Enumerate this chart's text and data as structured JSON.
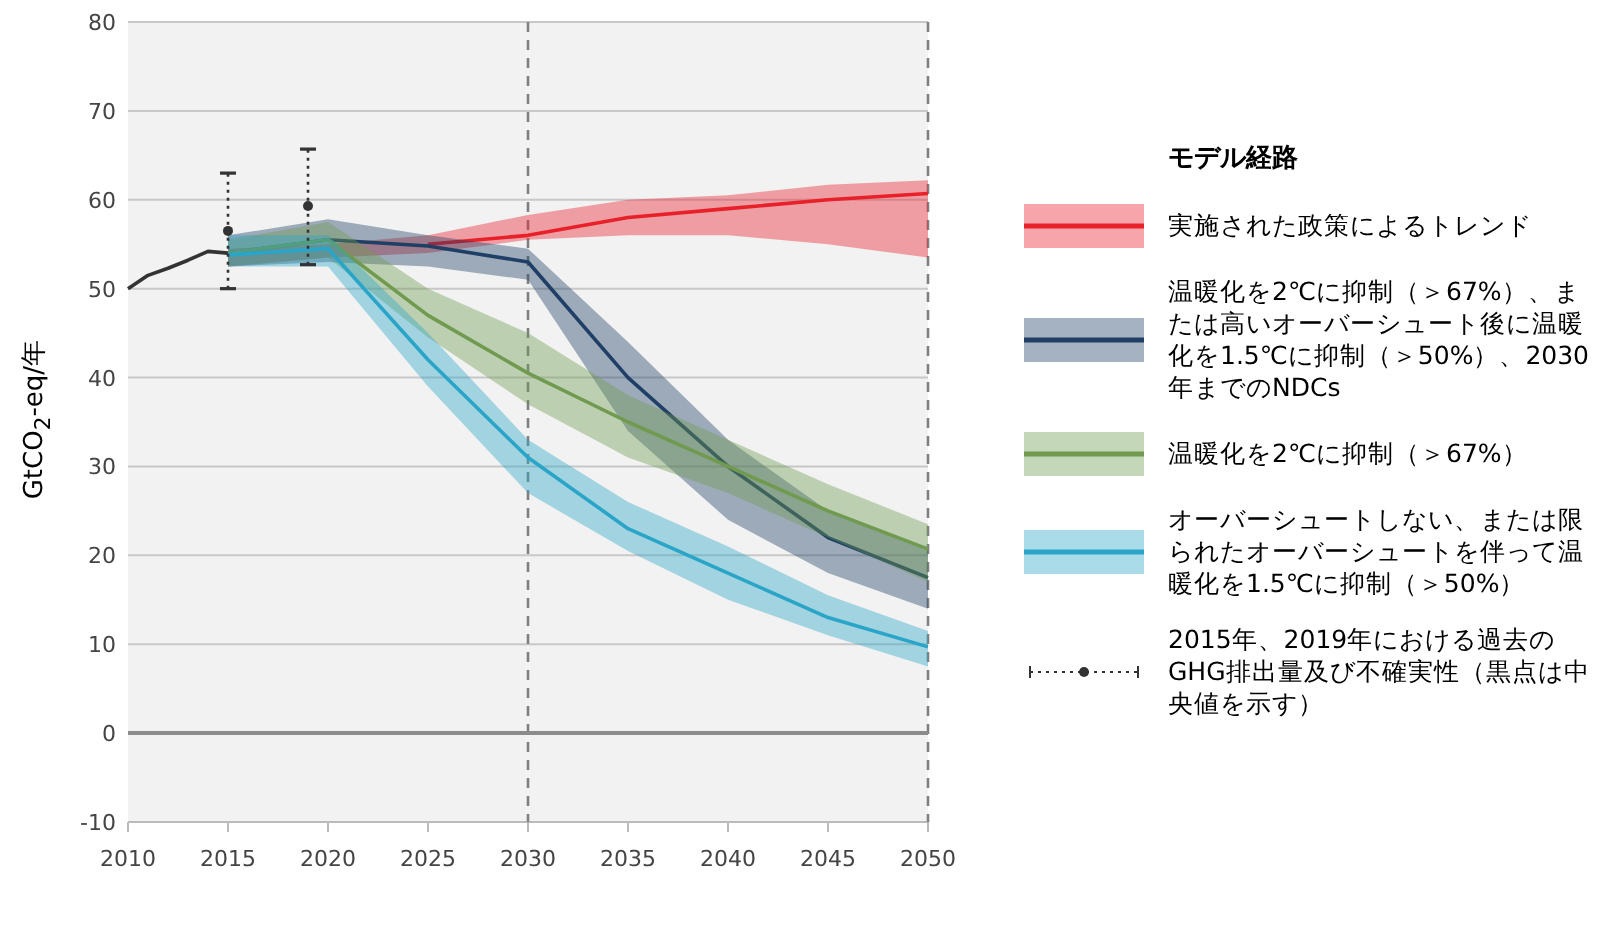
{
  "chart_data": {
    "type": "line",
    "ylabel": "GtCO$_{2}$-eq/年",
    "legend_title": "モデル経路",
    "legend": "right",
    "grid": "y",
    "xlim": [
      2010,
      2050
    ],
    "ylim": [
      -10,
      80
    ],
    "xticks": [
      2010,
      2015,
      2020,
      2025,
      2030,
      2035,
      2040,
      2045,
      2050
    ],
    "yticks": [
      -10,
      0,
      10,
      20,
      30,
      40,
      50,
      60,
      70,
      80
    ],
    "ref_lines": [
      {
        "axis": "x",
        "value": 2030,
        "color": "#808080",
        "line_style": "dashed"
      },
      {
        "axis": "x",
        "value": 2050,
        "color": "#808080",
        "line_style": "dashed"
      },
      {
        "axis": "y",
        "value": 0,
        "color": "#8c8c8c",
        "line_style": "solid"
      }
    ],
    "series": [
      {
        "color": "#333333",
        "x": [
          2010,
          2011,
          2012,
          2013,
          2014,
          2015
        ],
        "values": [
          50,
          51.5,
          52.3,
          53.2,
          54.2,
          54
        ]
      },
      {
        "name": "実施された政策によるトレンド",
        "color": "#e8202a",
        "x": [
          2015,
          2020,
          2025,
          2030,
          2035,
          2040,
          2045,
          2050
        ],
        "values": [
          null,
          null,
          55,
          56,
          58,
          59,
          60,
          60.7
        ],
        "lower": [
          52.5,
          53.5,
          54,
          55.5,
          56,
          56,
          55,
          53.5
        ],
        "upper": [
          54.5,
          55,
          56,
          58.3,
          60,
          60.5,
          61.7,
          62.2
        ]
      },
      {
        "name": "温暖化を2℃に抑制（＞67%）、または高いオーバーシュート後に温暖化を1.5℃に抑制（＞50%）、2030年までのNDCs",
        "color": "#1f3f66",
        "x": [
          2015,
          2020,
          2025,
          2030,
          2035,
          2040,
          2045,
          2050
        ],
        "values": [
          54,
          55.5,
          54.8,
          53,
          40,
          30,
          22,
          17.5
        ],
        "lower": [
          52.5,
          53,
          52.5,
          51,
          34,
          24,
          18,
          14
        ],
        "upper": [
          56,
          57.8,
          56,
          54.5,
          44,
          33,
          25,
          20.5
        ]
      },
      {
        "name": "温暖化を2℃に抑制（＞67%）",
        "color": "#6f9a4f",
        "x": [
          2015,
          2020,
          2025,
          2030,
          2035,
          2040,
          2045,
          2050
        ],
        "values": [
          54,
          55.5,
          47,
          40.5,
          35,
          30,
          25,
          20.7
        ],
        "lower": [
          52.5,
          53.5,
          44.5,
          37,
          31,
          27,
          22,
          17
        ],
        "upper": [
          55.5,
          57.5,
          50,
          45,
          38,
          33,
          28,
          23.5
        ]
      },
      {
        "name": "オーバーシュートしない、または限られたオーバーシュートを伴って温暖化を1.5℃に抑制（＞50%）",
        "color": "#2aa5c8",
        "x": [
          2015,
          2020,
          2025,
          2030,
          2035,
          2040,
          2045,
          2050
        ],
        "values": [
          53.8,
          54.5,
          42,
          31,
          23,
          18,
          13,
          9.7
        ],
        "lower": [
          52.5,
          52.5,
          39,
          27,
          20.5,
          15,
          11,
          7.5
        ],
        "upper": [
          56,
          56,
          45,
          33,
          26,
          21,
          15.5,
          11.5
        ]
      },
      {
        "type": "scatter",
        "name": "2015年、2019年における過去のGHG排出量及び不確実性（黒点は中央値を示す）",
        "color": "#333333",
        "marker": "circle",
        "line_style": "dotted",
        "x": [
          2015,
          2019
        ],
        "values": [
          56.5,
          59.3
        ],
        "errors": [
          [
            50,
            63
          ],
          [
            52.7,
            65.7
          ]
        ]
      }
    ]
  }
}
